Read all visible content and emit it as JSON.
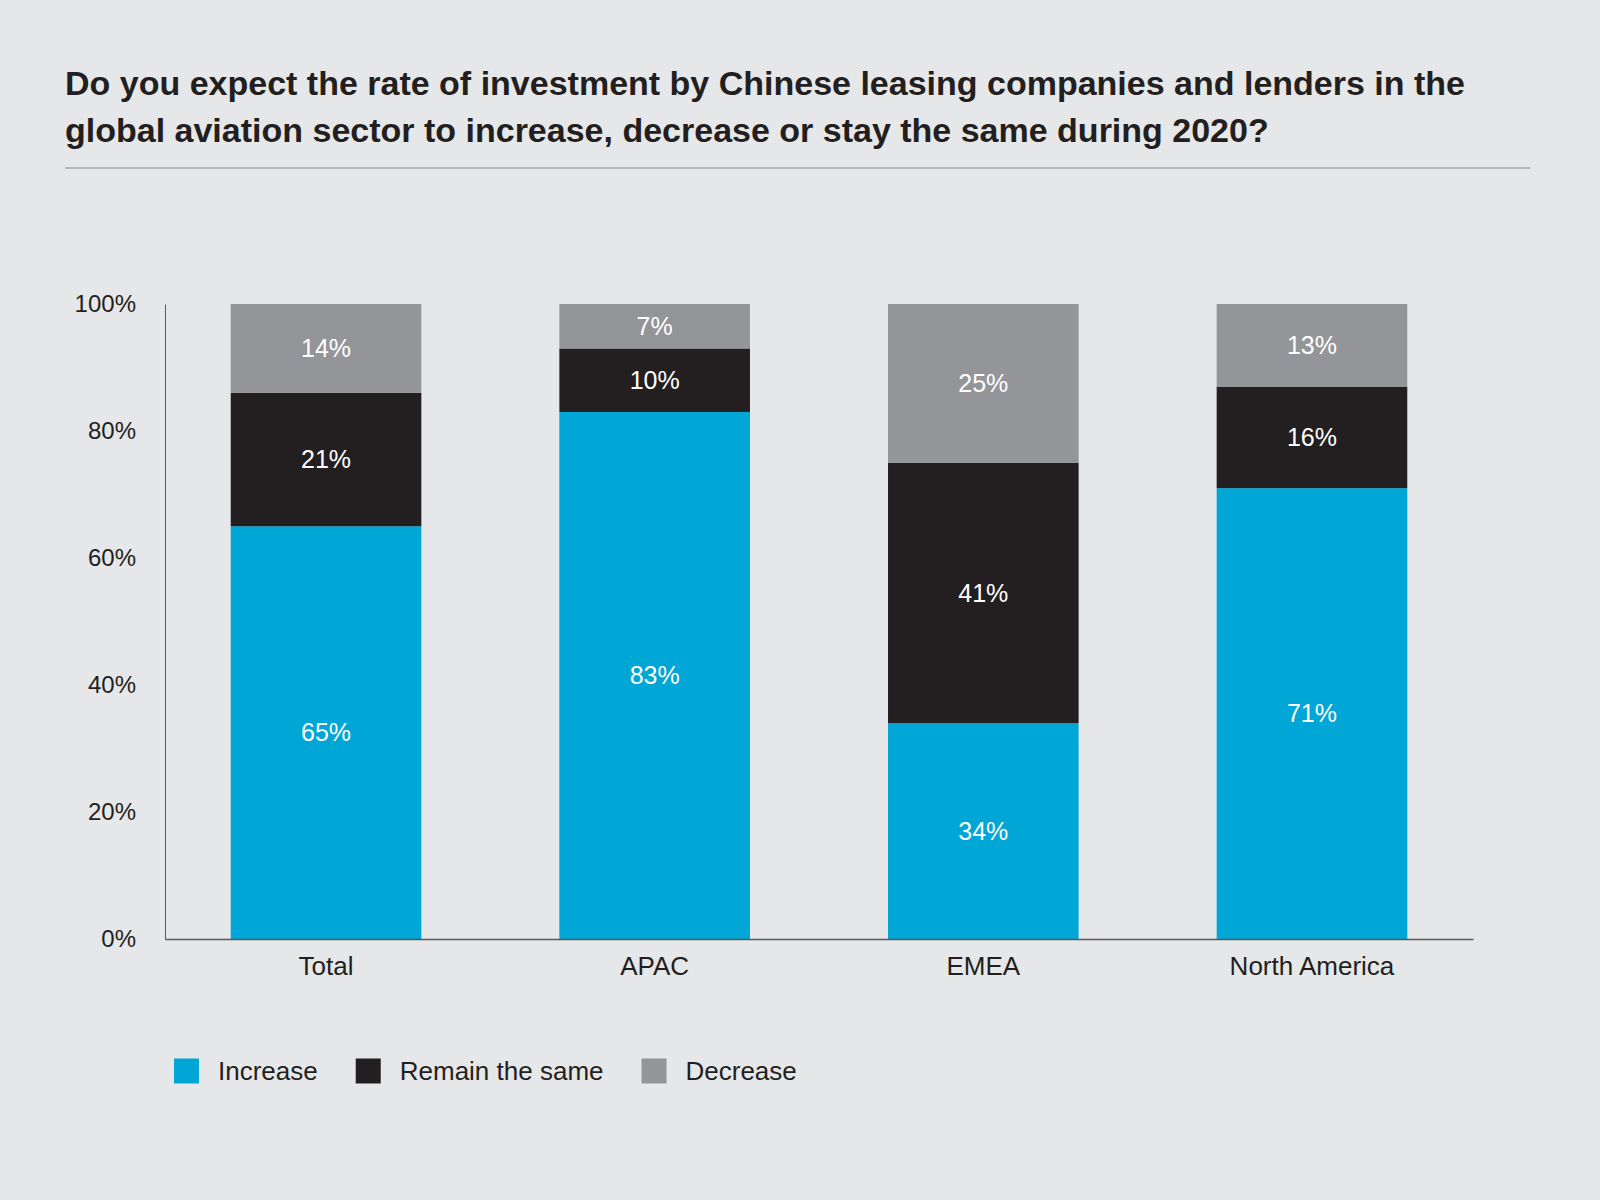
{
  "chart_data": {
    "type": "bar",
    "title": "Do you expect the rate of investment by Chinese leasing companies and lenders in the global aviation sector to increase, decrease or stay the same during 2020?",
    "stacked": true,
    "data_labels": true,
    "categories": [
      "Total",
      "APAC",
      "EMEA",
      "North America"
    ],
    "series": [
      {
        "name": "Increase",
        "color": "#00a6d6",
        "values": [
          65,
          83,
          34,
          71
        ],
        "value_labels": [
          "65%",
          "83%",
          "34%",
          "71%"
        ]
      },
      {
        "name": "Remain the same",
        "color": "#231f20",
        "values": [
          21,
          10,
          41,
          16
        ],
        "value_labels": [
          "21%",
          "10%",
          "41%",
          "16%"
        ]
      },
      {
        "name": "Decrease",
        "color": "#939598",
        "values": [
          14,
          7,
          25,
          13
        ],
        "value_labels": [
          "14%",
          "7%",
          "25%",
          "13%"
        ]
      }
    ],
    "ylim": [
      0,
      100
    ],
    "yticks": [
      {
        "value": 0,
        "label": "0%"
      },
      {
        "value": 20,
        "label": "20%"
      },
      {
        "value": 40,
        "label": "40%"
      },
      {
        "value": 60,
        "label": "60%"
      },
      {
        "value": 80,
        "label": "80%"
      },
      {
        "value": 100,
        "label": "100%"
      }
    ],
    "legend": "bottom-left"
  }
}
